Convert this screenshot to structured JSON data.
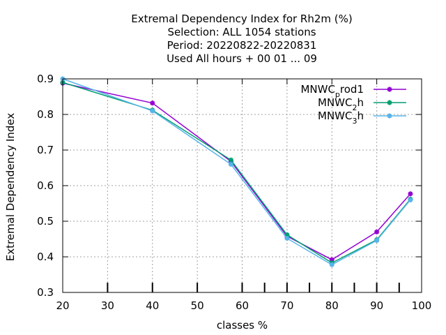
{
  "chart_data": {
    "type": "line",
    "title_lines": [
      "Extremal Dependency Index  for Rh2m (%)",
      "Selection: ALL   1054 stations",
      "Period: 20220822-20220831",
      "Used  All hours + 00 01 ... 09"
    ],
    "xlabel": "classes %",
    "ylabel": "Extremal Dependency Index",
    "xlim": [
      20,
      100
    ],
    "ylim": [
      0.3,
      0.9
    ],
    "xticks": [
      20,
      30,
      40,
      50,
      60,
      70,
      80,
      90,
      100
    ],
    "yticks": [
      0.3,
      0.4,
      0.5,
      0.6,
      0.7,
      0.8,
      0.9
    ],
    "xtick_labels": [
      "20",
      "30",
      "40",
      "50",
      "60",
      "70",
      "80",
      "90",
      "100"
    ],
    "ytick_labels": [
      "0.3",
      "0.4",
      "0.5",
      "0.6",
      "0.7",
      "0.8",
      "0.9"
    ],
    "minor_xticks": [
      30,
      40,
      50,
      60,
      65,
      70,
      75,
      80,
      85,
      90,
      95
    ],
    "grid": true,
    "legend_position": "top-right",
    "x": [
      20,
      40,
      57.5,
      70,
      80,
      90,
      97.5
    ],
    "series": [
      {
        "name": "MNWC_prod1",
        "legend_parts": [
          "MNWC",
          "p",
          "rod1"
        ],
        "color": "#9400d3",
        "values": [
          0.888,
          0.832,
          0.668,
          0.458,
          0.392,
          0.47,
          0.577
        ]
      },
      {
        "name": "MNWC_2h",
        "legend_parts": [
          "MNWC",
          "2",
          "h"
        ],
        "color": "#009e73",
        "values": [
          0.89,
          0.812,
          0.672,
          0.462,
          0.383,
          0.448,
          0.562
        ]
      },
      {
        "name": "MNWC_3h",
        "legend_parts": [
          "MNWC",
          "3",
          "h"
        ],
        "color": "#56b4e9",
        "values": [
          0.9,
          0.81,
          0.66,
          0.452,
          0.378,
          0.446,
          0.56
        ]
      }
    ]
  }
}
